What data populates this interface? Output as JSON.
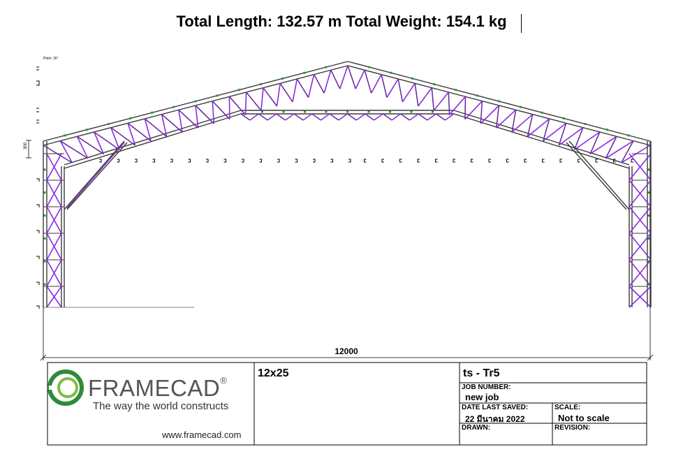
{
  "header": {
    "title": "Total Length: 132.57 m Total Weight: 154.1 kg"
  },
  "drawing": {
    "pitch_label": "Pitch: 16°",
    "height_dim": "300",
    "span_dim": "12000",
    "colors": {
      "member": "#3a3a3a",
      "web": "#8a2be2",
      "connector": "#1e9a3a"
    }
  },
  "title_block": {
    "logo_word": "FRAMECAD",
    "logo_reg": "®",
    "tagline": "The way the world constructs",
    "website": "www.framecad.com",
    "project": "12x25",
    "truss_name": "ts - Tr5",
    "job_number_label": "JOB NUMBER:",
    "job_number": "new job",
    "date_label": "DATE LAST SAVED:",
    "date_value": "22 มีนาคม 2022",
    "scale_label": "SCALE:",
    "scale_value": "Not to scale",
    "drawn_label": "DRAWN:",
    "revision_label": "REVISION:",
    "colors": {
      "logo_green": "#2e8b3a",
      "logo_dark": "#555555"
    }
  }
}
